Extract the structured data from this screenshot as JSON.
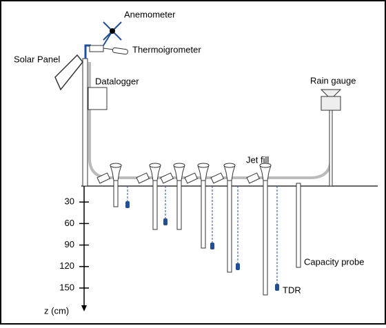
{
  "labels": {
    "anemometer": "Anemometer",
    "thermoigrometer": "Thermoigrometer",
    "solar_panel": "Solar Panel",
    "datalogger": "Datalogger",
    "rain_gauge": "Rain gauge",
    "jet_fill": "Jet fill",
    "capacity_probe": "Capacity probe",
    "tdr": "TDR"
  },
  "depth_axis": {
    "label": "z (cm)",
    "ticks": [
      30,
      60,
      90,
      120,
      150
    ]
  }
}
